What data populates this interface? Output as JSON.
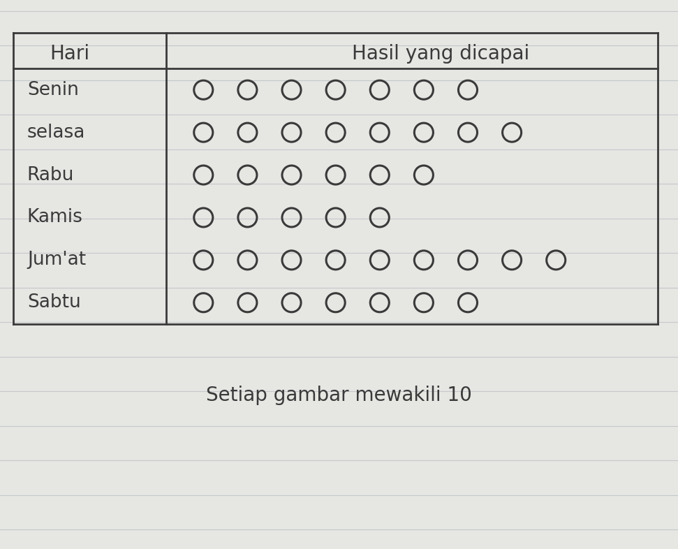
{
  "chart_data": {
    "type": "pictogram",
    "header": {
      "category": "Hari",
      "values": "Hasil yang dicapai"
    },
    "categories": [
      "Senin",
      "selasa",
      "Rabu",
      "Kamis",
      "Jum'at",
      "Sabtu"
    ],
    "values": [
      70,
      80,
      60,
      50,
      90,
      70
    ],
    "unit": 10,
    "note": "Setiap gambar mewakili 10",
    "marker": "circle",
    "color": "#3a3a3a"
  }
}
